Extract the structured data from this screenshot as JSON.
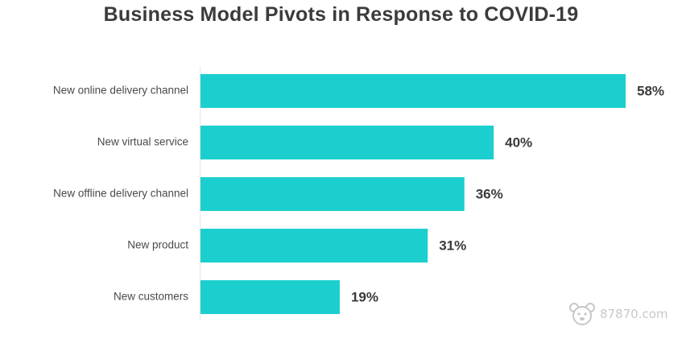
{
  "chart_data": {
    "type": "bar",
    "orientation": "horizontal",
    "title": "Business Model Pivots in Response to COVID-19",
    "categories": [
      "New online delivery channel",
      "New virtual service",
      "New offline delivery channel",
      "New product",
      "New customers"
    ],
    "values": [
      58,
      40,
      36,
      31,
      19
    ],
    "value_labels": [
      "58%",
      "40%",
      "36%",
      "31%",
      "19%"
    ],
    "bar_color": "#1ccfcf",
    "xlabel": "",
    "ylabel": "",
    "xlim": [
      0,
      58
    ],
    "grid": false,
    "legend": "none"
  },
  "watermark": {
    "text": "87870.com"
  }
}
